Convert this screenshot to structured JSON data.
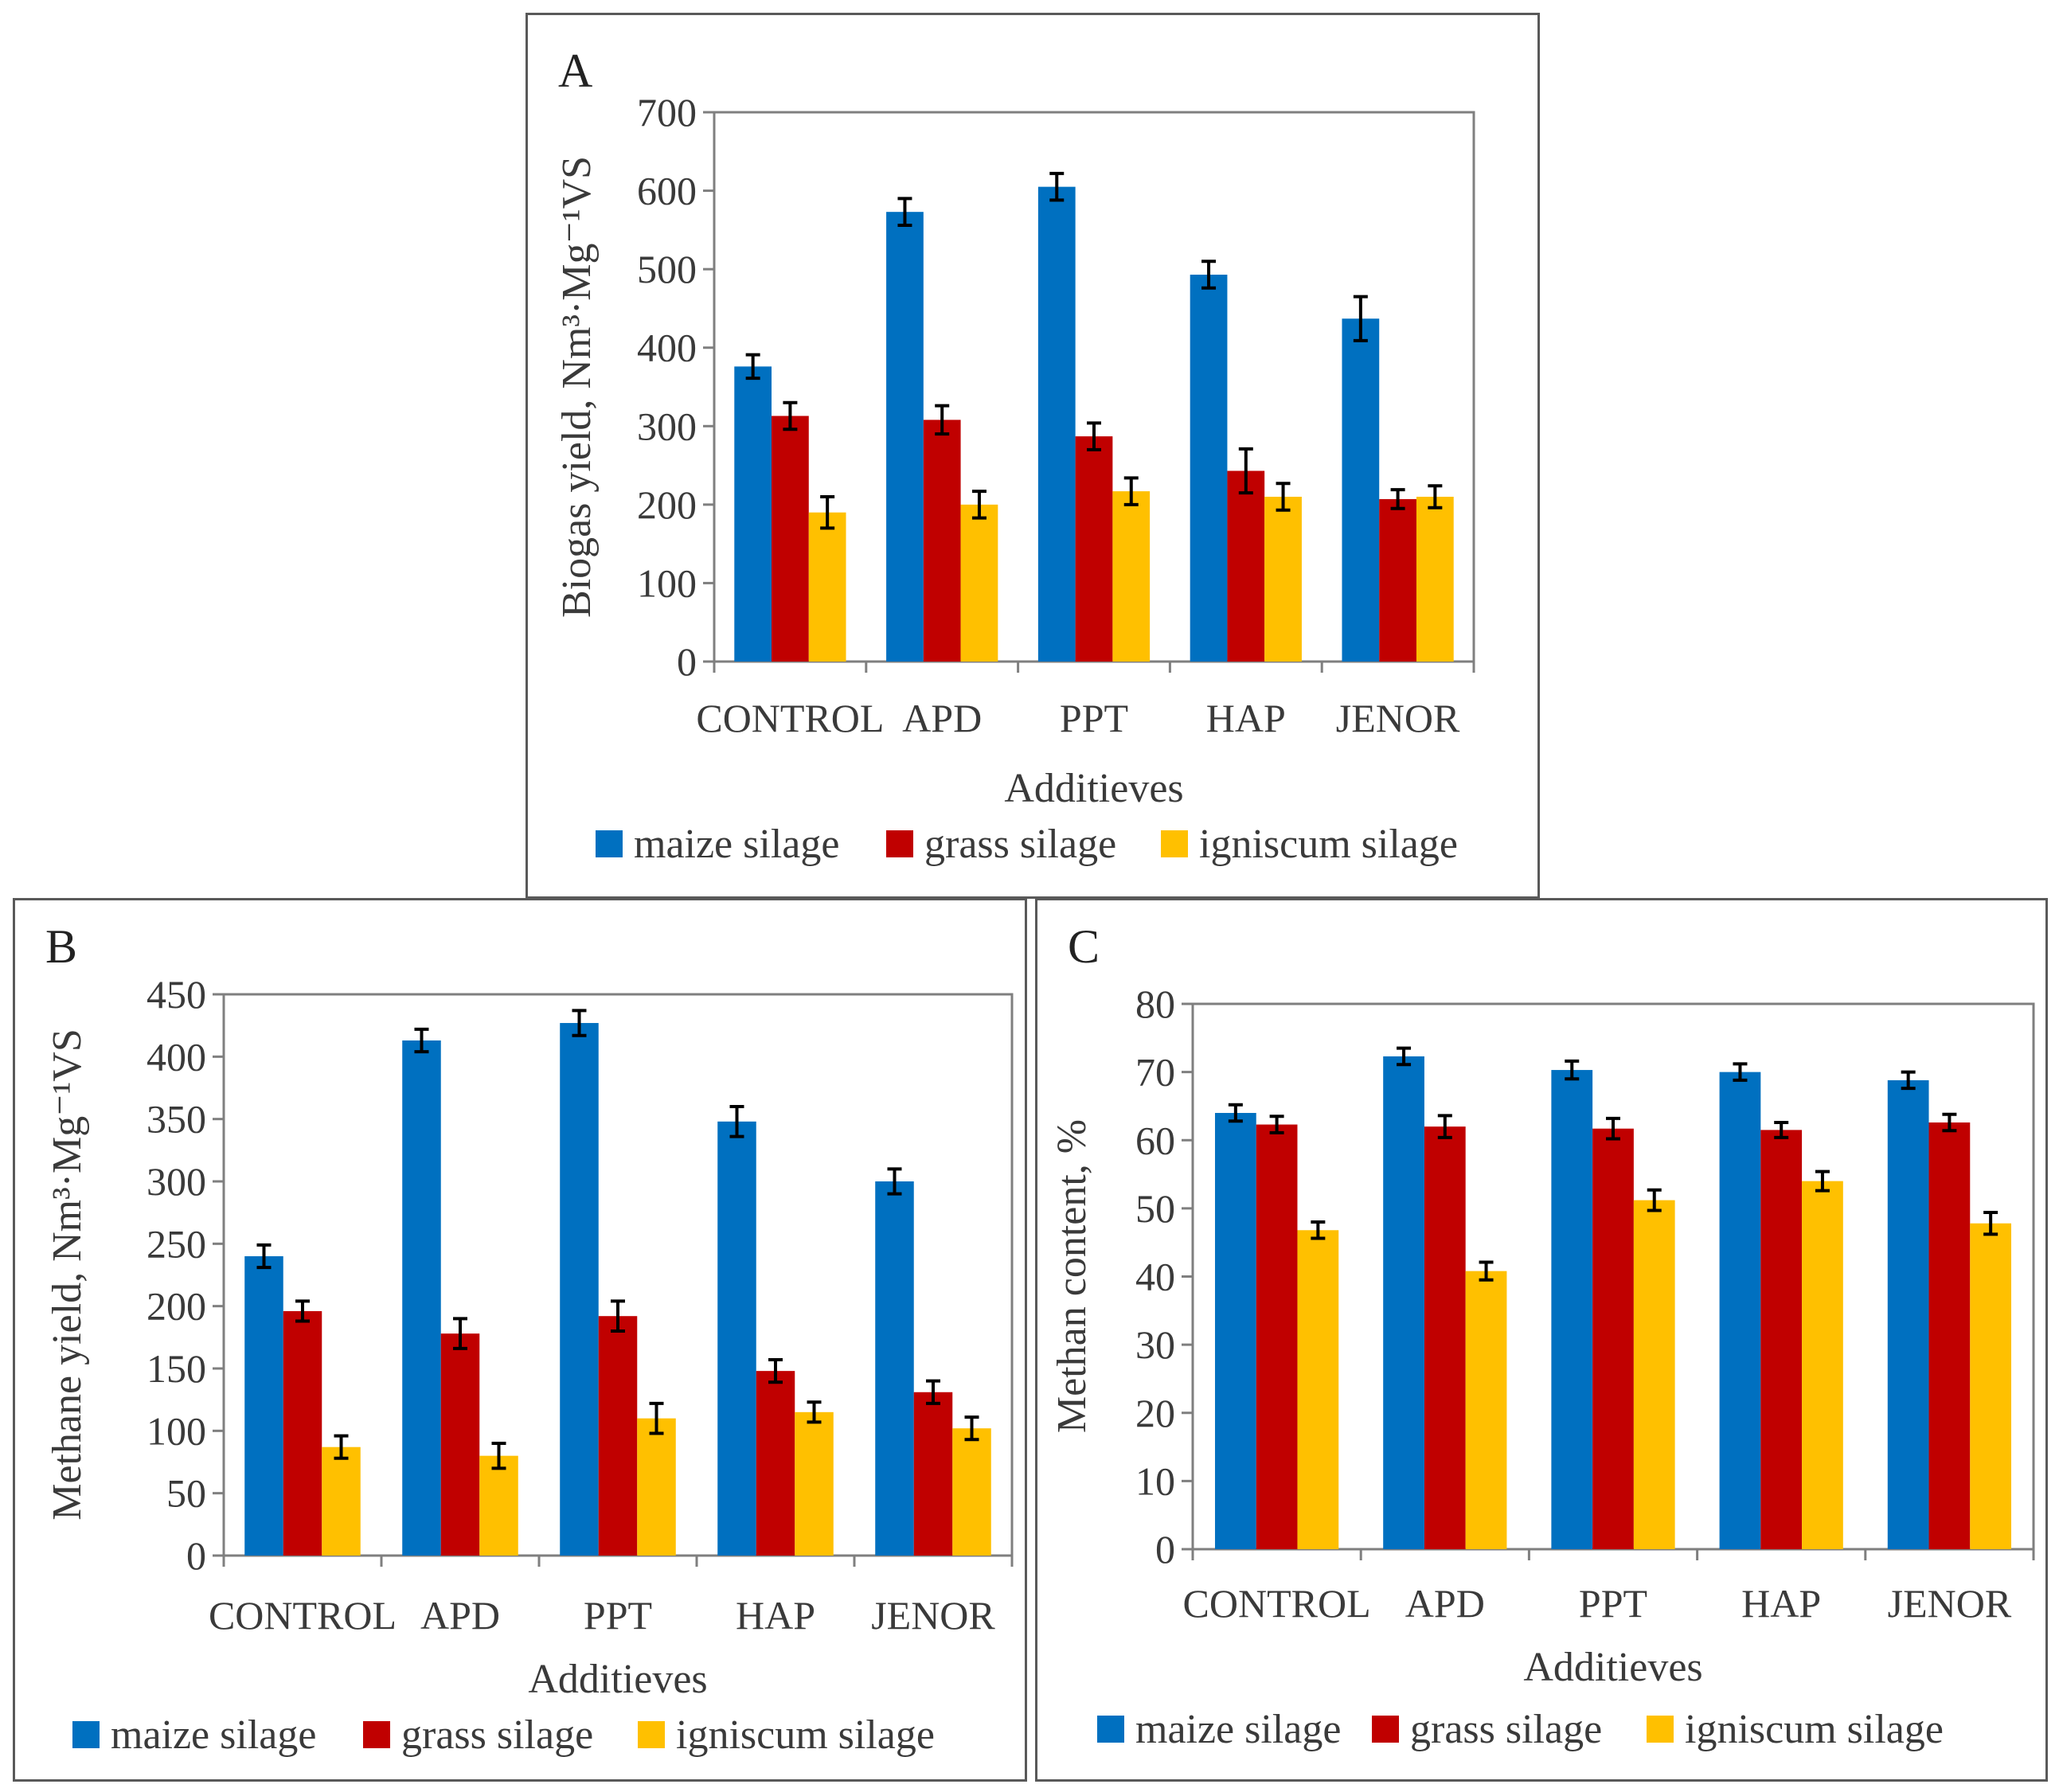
{
  "colors": {
    "maize": "#0070C0",
    "grass": "#C00000",
    "igniscum": "#FFC000",
    "axis": "#7f7f7f",
    "frame": "#595959"
  },
  "legend": [
    "maize silage",
    "grass silage",
    "igniscum silage"
  ],
  "chart_data": [
    {
      "panel": "A",
      "type": "bar",
      "title": "",
      "xlabel": "Additieves",
      "ylabel": "Biogas yield, Nm³·Mg⁻¹VS",
      "ylim": [
        0,
        700
      ],
      "yticks": [
        0,
        100,
        200,
        300,
        400,
        500,
        600,
        700
      ],
      "categories": [
        "CONTROL",
        "APD",
        "PPT",
        "HAP",
        "JENOR"
      ],
      "series": [
        {
          "name": "maize silage",
          "values": [
            376,
            573,
            605,
            493,
            437
          ],
          "errors": [
            15,
            17,
            17,
            17,
            28
          ]
        },
        {
          "name": "grass silage",
          "values": [
            313,
            308,
            287,
            243,
            207
          ],
          "errors": [
            17,
            18,
            17,
            28,
            12
          ]
        },
        {
          "name": "igniscum silage",
          "values": [
            190,
            200,
            217,
            210,
            210
          ],
          "errors": [
            20,
            17,
            17,
            17,
            14
          ]
        }
      ]
    },
    {
      "panel": "B",
      "type": "bar",
      "title": "",
      "xlabel": "Additieves",
      "ylabel": "Methane yield, Nm³·Mg⁻¹VS",
      "ylim": [
        0,
        450
      ],
      "yticks": [
        0,
        50,
        100,
        150,
        200,
        250,
        300,
        350,
        400,
        450
      ],
      "categories": [
        "CONTROL",
        "APD",
        "PPT",
        "HAP",
        "JENOR"
      ],
      "series": [
        {
          "name": "maize silage",
          "values": [
            240,
            413,
            427,
            348,
            300
          ],
          "errors": [
            9,
            9,
            10,
            12,
            10
          ]
        },
        {
          "name": "grass silage",
          "values": [
            196,
            178,
            192,
            148,
            131
          ],
          "errors": [
            8,
            12,
            12,
            9,
            9
          ]
        },
        {
          "name": "igniscum silage",
          "values": [
            87,
            80,
            110,
            115,
            102
          ],
          "errors": [
            9,
            10,
            12,
            8,
            9
          ]
        }
      ]
    },
    {
      "panel": "C",
      "type": "bar",
      "title": "",
      "xlabel": "Additieves",
      "ylabel": "Methan content, %",
      "ylim": [
        0,
        80
      ],
      "yticks": [
        0,
        10,
        20,
        30,
        40,
        50,
        60,
        70,
        80
      ],
      "categories": [
        "CONTROL",
        "APD",
        "PPT",
        "HAP",
        "JENOR"
      ],
      "series": [
        {
          "name": "maize silage",
          "values": [
            64,
            72.3,
            70.3,
            70,
            68.8
          ],
          "errors": [
            1.2,
            1.2,
            1.3,
            1.2,
            1.2
          ]
        },
        {
          "name": "grass silage",
          "values": [
            62.3,
            62,
            61.7,
            61.5,
            62.6
          ],
          "errors": [
            1.2,
            1.6,
            1.5,
            1.1,
            1.2
          ]
        },
        {
          "name": "igniscum silage",
          "values": [
            46.8,
            40.8,
            51.2,
            54,
            47.8
          ],
          "errors": [
            1.2,
            1.3,
            1.5,
            1.4,
            1.6
          ]
        }
      ]
    }
  ]
}
